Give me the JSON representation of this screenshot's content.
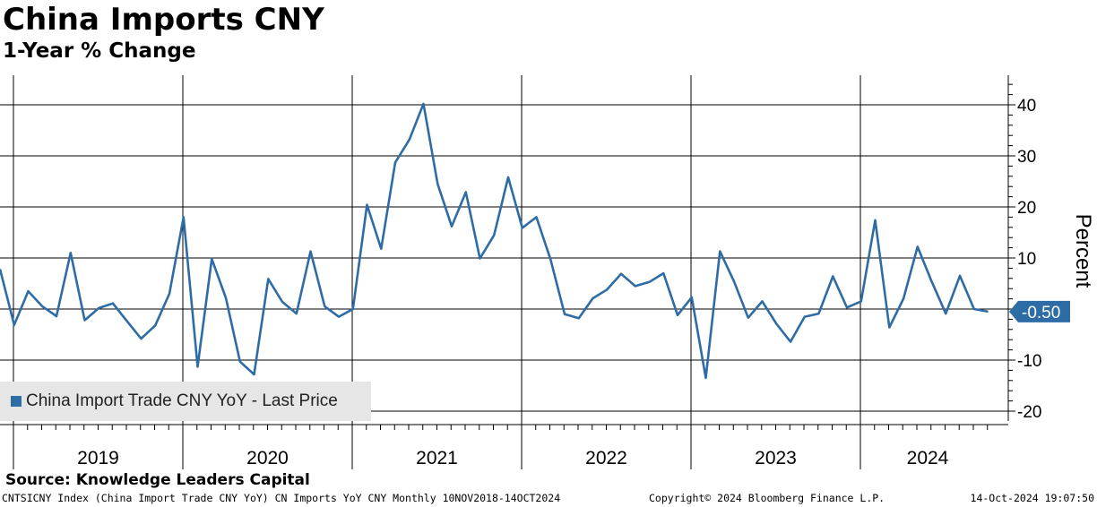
{
  "chart_data": {
    "type": "line",
    "title": "China Imports CNY",
    "subtitle": "1-Year % Change",
    "ylabel": "Percent",
    "xlabel": "",
    "ylim": [
      -20,
      45
    ],
    "yticks": [
      -20,
      -10,
      10,
      20,
      30,
      40
    ],
    "year_labels": [
      "2019",
      "2020",
      "2021",
      "2022",
      "2023",
      "2024"
    ],
    "years": [
      2019,
      2020,
      2021,
      2022,
      2023,
      2024
    ],
    "x_start_month_index": 0,
    "x_start": "Nov 2018",
    "series": [
      {
        "name": "China Import Trade CNY YoY - Last Price",
        "color": "#2e6ca6",
        "values": [
          7.8,
          -3.1,
          3.5,
          0.5,
          -1.4,
          11.0,
          -2.2,
          0.2,
          1.1,
          -2.4,
          -5.8,
          -3.2,
          3.0,
          18.0,
          -11.3,
          9.8,
          2.2,
          -10.3,
          -12.8,
          5.9,
          1.4,
          -0.9,
          11.3,
          0.5,
          -1.5,
          0.0,
          20.4,
          11.8,
          28.7,
          33.2,
          40.2,
          24.5,
          16.2,
          22.9,
          9.9,
          14.5,
          25.8,
          15.9,
          18.0,
          9.7,
          -1.0,
          -1.8,
          2.1,
          3.8,
          6.9,
          4.5,
          5.3,
          7.0,
          -1.2,
          2.3,
          -13.5,
          11.3,
          5.4,
          -1.7,
          1.5,
          -2.9,
          -6.4,
          -1.5,
          -0.9,
          6.4,
          0.3,
          1.5,
          17.4,
          -3.6,
          2.0,
          12.2,
          5.4,
          -0.9,
          6.5,
          0.0,
          -0.5
        ]
      }
    ],
    "last_value_label": "-0.50",
    "legend": "China Import Trade CNY YoY - Last Price",
    "legend_position": "bottom-left"
  },
  "source": "Source: Knowledge Leaders Capital",
  "footer": {
    "left": "CNTSICNY Index (China Import Trade CNY YoY) CN Imports YoY CNY  Monthly 10NOV2018-14OCT2024",
    "middle": "Copyright© 2024 Bloomberg Finance L.P.",
    "right": "14-Oct-2024 19:07:50"
  },
  "colors": {
    "line": "#2e6ca6",
    "grid": "#000000",
    "legend_bg": "#e6e6e6",
    "label_bg": "#2e6ca6"
  }
}
